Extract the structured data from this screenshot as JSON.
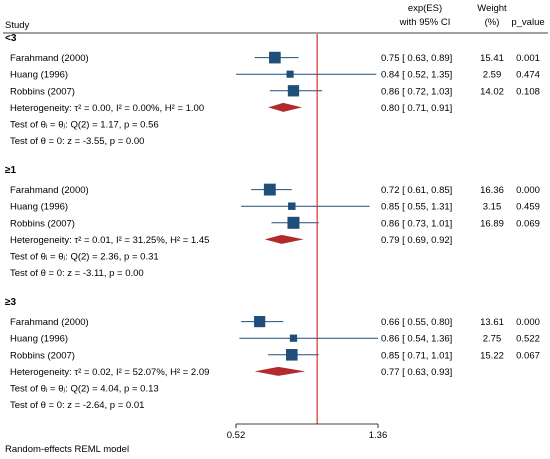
{
  "header": {
    "study": "Study",
    "es_line1": "exp(ES)",
    "es_line2": "with 95% CI",
    "weight_line1": "Weight",
    "weight_line2": "(%)",
    "pvalue": "p_value"
  },
  "footer_note": "Random-effects REML model",
  "chart_data": {
    "type": "forest",
    "xlim": [
      0.52,
      1.36
    ],
    "x_ticks": [
      "0.52",
      "1.36"
    ],
    "reference_line": 1.0,
    "colors": {
      "study_marker": "#1f4e79",
      "summary_diamond": "#b22a2e",
      "reference_line": "#d9312d",
      "axis": "#000000"
    },
    "groups": [
      {
        "label": "<3",
        "studies": [
          {
            "name": "Farahmand (2000)",
            "es": 0.75,
            "lo": 0.63,
            "hi": 0.89,
            "ci_text": "0.75 [ 0.63,  0.89]",
            "weight": "15.41",
            "p": "0.001"
          },
          {
            "name": "Huang (1996)",
            "es": 0.84,
            "lo": 0.52,
            "hi": 1.35,
            "ci_text": "0.84 [ 0.52,  1.35]",
            "weight": "2.59",
            "p": "0.474"
          },
          {
            "name": "Robbins (2007)",
            "es": 0.86,
            "lo": 0.72,
            "hi": 1.03,
            "ci_text": "0.86 [ 0.72,  1.03]",
            "weight": "14.02",
            "p": "0.108"
          }
        ],
        "summary": {
          "es": 0.8,
          "lo": 0.71,
          "hi": 0.91,
          "ci_text": "0.80 [ 0.71,  0.91]"
        },
        "heterogeneity": "Heterogeneity: τ² = 0.00, I² = 0.00%, H² = 1.00",
        "test_homog": "Test of θᵢ = θⱼ: Q(2) = 1.17, p = 0.56",
        "test_theta": "Test of θ = 0: z = -3.55, p = 0.00"
      },
      {
        "label": "≥1",
        "studies": [
          {
            "name": "Farahmand (2000)",
            "es": 0.72,
            "lo": 0.61,
            "hi": 0.85,
            "ci_text": "0.72 [ 0.61,  0.85]",
            "weight": "16.36",
            "p": "0.000"
          },
          {
            "name": "Huang (1996)",
            "es": 0.85,
            "lo": 0.55,
            "hi": 1.31,
            "ci_text": "0.85 [ 0.55,  1.31]",
            "weight": "3.15",
            "p": "0.459"
          },
          {
            "name": "Robbins (2007)",
            "es": 0.86,
            "lo": 0.73,
            "hi": 1.01,
            "ci_text": "0.86 [ 0.73,  1.01]",
            "weight": "16.89",
            "p": "0.069"
          }
        ],
        "summary": {
          "es": 0.79,
          "lo": 0.69,
          "hi": 0.92,
          "ci_text": "0.79 [ 0.69,  0.92]"
        },
        "heterogeneity": "Heterogeneity: τ² = 0.01, I² = 31.25%, H² = 1.45",
        "test_homog": "Test of θᵢ = θⱼ: Q(2) = 2.36, p = 0.31",
        "test_theta": "Test of θ = 0: z = -3.11, p = 0.00"
      },
      {
        "label": "≥3",
        "studies": [
          {
            "name": "Farahmand (2000)",
            "es": 0.66,
            "lo": 0.55,
            "hi": 0.8,
            "ci_text": "0.66 [ 0.55,  0.80]",
            "weight": "13.61",
            "p": "0.000"
          },
          {
            "name": "Huang (1996)",
            "es": 0.86,
            "lo": 0.54,
            "hi": 1.36,
            "ci_text": "0.86 [ 0.54,  1.36]",
            "weight": "2.75",
            "p": "0.522"
          },
          {
            "name": "Robbins (2007)",
            "es": 0.85,
            "lo": 0.71,
            "hi": 1.01,
            "ci_text": "0.85 [ 0.71,  1.01]",
            "weight": "15.22",
            "p": "0.067"
          }
        ],
        "summary": {
          "es": 0.77,
          "lo": 0.63,
          "hi": 0.93,
          "ci_text": "0.77 [ 0.63,  0.93]"
        },
        "heterogeneity": "Heterogeneity: τ² = 0.02, I² = 52.07%, H² = 2.09",
        "test_homog": "Test of θᵢ = θⱼ: Q(2) = 4.04, p = 0.13",
        "test_theta": "Test of θ = 0: z = -2.64, p = 0.01"
      }
    ]
  }
}
